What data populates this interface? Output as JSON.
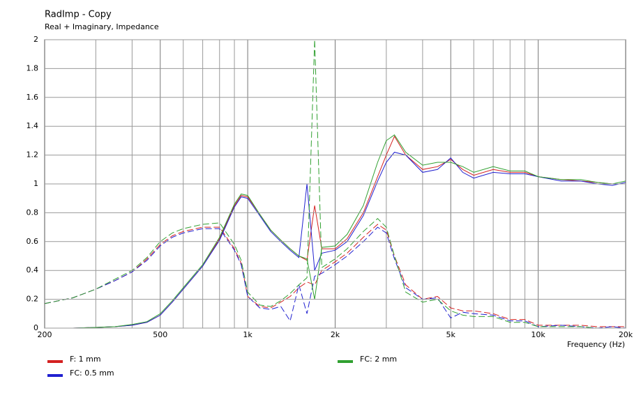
{
  "chart_data": {
    "type": "line",
    "title": "RadImp - Copy",
    "subtitle": "Real + Imaginary, Impedance",
    "x_label": "Frequency  (Hz)",
    "xscale": "log",
    "grid": true,
    "x": [
      200,
      250,
      300,
      350,
      400,
      450,
      500,
      550,
      600,
      700,
      800,
      900,
      950,
      1000,
      1100,
      1200,
      1300,
      1400,
      1500,
      1600,
      1700,
      1800,
      2000,
      2200,
      2500,
      2800,
      3000,
      3200,
      3500,
      4000,
      4500,
      5000,
      5500,
      6000,
      7000,
      8000,
      9000,
      10000,
      12000,
      14000,
      16000,
      18000,
      20000
    ],
    "xlim": [
      200,
      20000
    ],
    "xticks": [
      {
        "value": 200,
        "label": "200"
      },
      {
        "value": 500,
        "label": "500"
      },
      {
        "value": 1000,
        "label": "1k"
      },
      {
        "value": 2000,
        "label": "2k"
      },
      {
        "value": 5000,
        "label": "5k"
      },
      {
        "value": 10000,
        "label": "10k"
      },
      {
        "value": 20000,
        "label": "20k"
      }
    ],
    "xminor": [
      300,
      400,
      600,
      700,
      800,
      900,
      3000,
      4000,
      6000,
      7000,
      8000,
      9000
    ],
    "ylim": [
      0,
      2
    ],
    "yticks": [
      0,
      0.2,
      0.4,
      0.6,
      0.8,
      1,
      1.2,
      1.4,
      1.6,
      1.8,
      2
    ],
    "series": [
      {
        "name": "F: 1 mm",
        "color": "#d42020",
        "values": [
          null,
          0.0,
          0.005,
          0.01,
          0.02,
          0.04,
          0.09,
          0.18,
          0.27,
          0.43,
          0.62,
          0.85,
          0.92,
          0.91,
          0.79,
          0.68,
          0.61,
          0.55,
          0.5,
          0.47,
          0.85,
          0.55,
          0.55,
          0.62,
          0.8,
          1.05,
          1.2,
          1.33,
          1.2,
          1.1,
          1.12,
          1.17,
          1.1,
          1.06,
          1.1,
          1.08,
          1.08,
          1.05,
          1.03,
          1.02,
          1.01,
          1.0,
          1.0
        ],
        "imag_values": [
          0.17,
          0.21,
          0.27,
          0.33,
          0.39,
          0.48,
          0.58,
          0.64,
          0.67,
          0.7,
          0.7,
          0.55,
          0.45,
          0.22,
          0.15,
          0.14,
          0.18,
          0.22,
          0.28,
          0.32,
          0.3,
          0.4,
          0.46,
          0.52,
          0.63,
          0.72,
          0.68,
          0.5,
          0.3,
          0.2,
          0.22,
          0.14,
          0.12,
          0.12,
          0.1,
          0.06,
          0.06,
          0.02,
          0.02,
          0.02,
          0.01,
          0.01,
          0.01
        ]
      },
      {
        "name": "FC: 0.5 mm",
        "color": "#2020d0",
        "values": [
          null,
          0.0,
          0.005,
          0.01,
          0.02,
          0.04,
          0.09,
          0.18,
          0.27,
          0.43,
          0.61,
          0.84,
          0.91,
          0.9,
          0.78,
          0.67,
          0.6,
          0.54,
          0.49,
          1.0,
          0.4,
          0.52,
          0.54,
          0.6,
          0.78,
          1.02,
          1.15,
          1.22,
          1.2,
          1.08,
          1.1,
          1.18,
          1.08,
          1.04,
          1.08,
          1.07,
          1.07,
          1.05,
          1.02,
          1.02,
          1.0,
          0.99,
          1.01
        ],
        "imag_values": [
          0.17,
          0.21,
          0.27,
          0.33,
          0.39,
          0.47,
          0.57,
          0.63,
          0.66,
          0.69,
          0.69,
          0.54,
          0.44,
          0.22,
          0.14,
          0.13,
          0.15,
          0.05,
          0.3,
          0.1,
          0.36,
          0.38,
          0.44,
          0.5,
          0.6,
          0.7,
          0.66,
          0.48,
          0.28,
          0.2,
          0.21,
          0.07,
          0.11,
          0.1,
          0.09,
          0.05,
          0.05,
          0.01,
          0.02,
          0.01,
          0.0,
          0.01,
          0.0
        ]
      },
      {
        "name": "FC: 2 mm",
        "color": "#30a030",
        "values": [
          null,
          0.0,
          0.005,
          0.01,
          0.025,
          0.045,
          0.1,
          0.19,
          0.28,
          0.44,
          0.63,
          0.86,
          0.93,
          0.92,
          0.79,
          0.68,
          0.61,
          0.55,
          0.5,
          0.48,
          0.2,
          0.56,
          0.57,
          0.65,
          0.85,
          1.15,
          1.3,
          1.34,
          1.22,
          1.13,
          1.15,
          1.15,
          1.12,
          1.08,
          1.12,
          1.09,
          1.09,
          1.05,
          1.03,
          1.03,
          1.01,
          1.0,
          1.02
        ],
        "imag_values": [
          0.17,
          0.21,
          0.27,
          0.34,
          0.4,
          0.49,
          0.6,
          0.66,
          0.69,
          0.72,
          0.73,
          0.58,
          0.47,
          0.25,
          0.16,
          0.15,
          0.19,
          0.24,
          0.3,
          0.35,
          2,
          0.42,
          0.48,
          0.55,
          0.67,
          0.76,
          0.7,
          0.5,
          0.25,
          0.18,
          0.2,
          0.12,
          0.09,
          0.08,
          0.08,
          0.04,
          0.04,
          0.01,
          0.01,
          0.01,
          0.0,
          0.0,
          0.0
        ]
      }
    ]
  }
}
